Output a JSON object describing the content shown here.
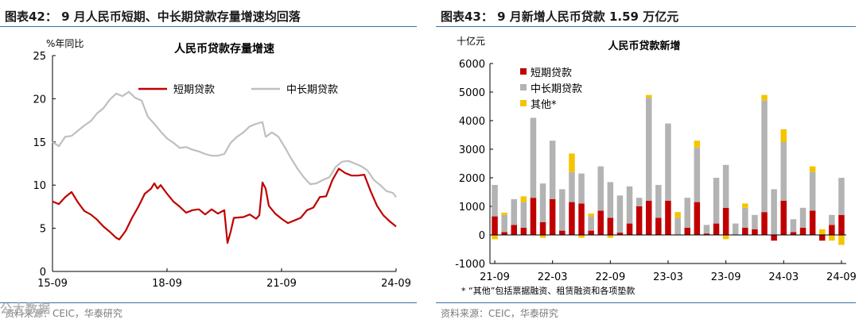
{
  "left_panel": {
    "figure_title": "图表42： 9 月人民币短期、中长期贷款存量增速均回落",
    "source": "资料来源：CEIC，华泰研究",
    "chart_data": {
      "type": "line",
      "title": "人民币贷款存量增速",
      "ylabel": "%年同比",
      "ylim": [
        0,
        25
      ],
      "yticks": [
        0,
        5,
        10,
        15,
        20,
        25
      ],
      "xlim": [
        "2015-09",
        "2024-09"
      ],
      "xticks": [
        "15-09",
        "18-09",
        "21-09",
        "24-09"
      ],
      "grid": false,
      "legend_position": "top",
      "series": [
        {
          "name": "短期贷款",
          "color": "#c00000",
          "points": [
            [
              "2015-09",
              8.1
            ],
            [
              "2015-11",
              7.8
            ],
            [
              "2016-01",
              8.6
            ],
            [
              "2016-03",
              9.2
            ],
            [
              "2016-05",
              8.0
            ],
            [
              "2016-07",
              7.0
            ],
            [
              "2016-09",
              6.6
            ],
            [
              "2016-11",
              6.0
            ],
            [
              "2017-01",
              5.2
            ],
            [
              "2017-03",
              4.6
            ],
            [
              "2017-05",
              3.9
            ],
            [
              "2017-06",
              3.7
            ],
            [
              "2017-08",
              4.7
            ],
            [
              "2017-10",
              6.2
            ],
            [
              "2017-12",
              7.5
            ],
            [
              "2018-02",
              9.0
            ],
            [
              "2018-04",
              9.6
            ],
            [
              "2018-05",
              10.2
            ],
            [
              "2018-06",
              9.6
            ],
            [
              "2018-07",
              10.0
            ],
            [
              "2018-09",
              9.0
            ],
            [
              "2018-11",
              8.1
            ],
            [
              "2019-01",
              7.5
            ],
            [
              "2019-03",
              6.8
            ],
            [
              "2019-05",
              7.1
            ],
            [
              "2019-07",
              7.2
            ],
            [
              "2019-09",
              6.6
            ],
            [
              "2019-11",
              7.2
            ],
            [
              "2020-01",
              6.7
            ],
            [
              "2020-03",
              7.1
            ],
            [
              "2020-04",
              3.3
            ],
            [
              "2020-05",
              4.6
            ],
            [
              "2020-06",
              6.2
            ],
            [
              "2020-09",
              6.3
            ],
            [
              "2020-11",
              6.6
            ],
            [
              "2021-01",
              6.1
            ],
            [
              "2021-02",
              6.5
            ],
            [
              "2021-03",
              10.3
            ],
            [
              "2021-04",
              9.6
            ],
            [
              "2021-05",
              7.6
            ],
            [
              "2021-07",
              6.7
            ],
            [
              "2021-09",
              6.1
            ],
            [
              "2021-11",
              5.6
            ],
            [
              "2022-01",
              5.9
            ],
            [
              "2022-03",
              6.2
            ],
            [
              "2022-05",
              7.1
            ],
            [
              "2022-07",
              7.4
            ],
            [
              "2022-09",
              8.6
            ],
            [
              "2022-11",
              8.7
            ],
            [
              "2023-01",
              10.6
            ],
            [
              "2023-03",
              11.9
            ],
            [
              "2023-05",
              11.4
            ],
            [
              "2023-07",
              11.1
            ],
            [
              "2023-09",
              11.1
            ],
            [
              "2023-11",
              11.2
            ],
            [
              "2024-01",
              9.3
            ],
            [
              "2024-03",
              7.6
            ],
            [
              "2024-05",
              6.5
            ],
            [
              "2024-07",
              5.8
            ],
            [
              "2024-09",
              5.2
            ]
          ]
        },
        {
          "name": "中长期贷款",
          "color": "#bfbfbf",
          "points": [
            [
              "2015-09",
              15.0
            ],
            [
              "2015-11",
              14.5
            ],
            [
              "2016-01",
              15.6
            ],
            [
              "2016-03",
              15.7
            ],
            [
              "2016-05",
              16.3
            ],
            [
              "2016-07",
              16.9
            ],
            [
              "2016-09",
              17.4
            ],
            [
              "2016-11",
              18.3
            ],
            [
              "2017-01",
              18.9
            ],
            [
              "2017-03",
              19.9
            ],
            [
              "2017-05",
              20.6
            ],
            [
              "2017-07",
              20.3
            ],
            [
              "2017-09",
              20.8
            ],
            [
              "2017-11",
              20.1
            ],
            [
              "2018-01",
              19.8
            ],
            [
              "2018-03",
              17.9
            ],
            [
              "2018-05",
              17.1
            ],
            [
              "2018-07",
              16.2
            ],
            [
              "2018-09",
              15.4
            ],
            [
              "2018-11",
              14.9
            ],
            [
              "2019-01",
              14.3
            ],
            [
              "2019-03",
              14.4
            ],
            [
              "2019-05",
              14.1
            ],
            [
              "2019-07",
              13.9
            ],
            [
              "2019-09",
              13.6
            ],
            [
              "2019-11",
              13.4
            ],
            [
              "2020-01",
              13.4
            ],
            [
              "2020-03",
              13.6
            ],
            [
              "2020-05",
              14.9
            ],
            [
              "2020-07",
              15.6
            ],
            [
              "2020-09",
              16.1
            ],
            [
              "2020-11",
              16.8
            ],
            [
              "2021-01",
              17.1
            ],
            [
              "2021-03",
              17.3
            ],
            [
              "2021-04",
              15.6
            ],
            [
              "2021-06",
              16.1
            ],
            [
              "2021-08",
              15.6
            ],
            [
              "2021-10",
              14.4
            ],
            [
              "2021-12",
              13.1
            ],
            [
              "2022-02",
              11.9
            ],
            [
              "2022-04",
              10.9
            ],
            [
              "2022-06",
              10.1
            ],
            [
              "2022-08",
              10.2
            ],
            [
              "2022-10",
              10.6
            ],
            [
              "2022-12",
              10.9
            ],
            [
              "2023-02",
              12.1
            ],
            [
              "2023-04",
              12.7
            ],
            [
              "2023-06",
              12.8
            ],
            [
              "2023-08",
              12.5
            ],
            [
              "2023-10",
              12.2
            ],
            [
              "2023-12",
              11.7
            ],
            [
              "2024-02",
              10.6
            ],
            [
              "2024-04",
              10.0
            ],
            [
              "2024-06",
              9.3
            ],
            [
              "2024-08",
              9.1
            ],
            [
              "2024-09",
              8.6
            ]
          ]
        }
      ]
    }
  },
  "right_panel": {
    "figure_title": "图表43： 9 月新增人民币贷款 1.59 万亿元",
    "source": "资料来源：CEIC，华泰研究",
    "chart_data": {
      "type": "bar",
      "stacked": true,
      "title": "人民币贷款新增",
      "ylabel": "十亿元",
      "ylim": [
        -1000,
        6000
      ],
      "yticks": [
        -1000,
        0,
        1000,
        2000,
        3000,
        4000,
        5000,
        6000
      ],
      "xticks": [
        "21-09",
        "22-03",
        "22-09",
        "23-03",
        "23-09",
        "24-03",
        "24-09"
      ],
      "xtick_indices": [
        0,
        6,
        12,
        18,
        24,
        30,
        36
      ],
      "grid": false,
      "legend_position": "top-left",
      "note": "* “其他”包括票据融资、租赁融资和各项垫款",
      "categories": [
        "2021-09",
        "2021-10",
        "2021-11",
        "2021-12",
        "2022-01",
        "2022-02",
        "2022-03",
        "2022-04",
        "2022-05",
        "2022-06",
        "2022-07",
        "2022-08",
        "2022-09",
        "2022-10",
        "2022-11",
        "2022-12",
        "2023-01",
        "2023-02",
        "2023-03",
        "2023-04",
        "2023-05",
        "2023-06",
        "2023-07",
        "2023-08",
        "2023-09",
        "2023-10",
        "2023-11",
        "2023-12",
        "2024-01",
        "2024-02",
        "2024-03",
        "2024-04",
        "2024-05",
        "2024-06",
        "2024-07",
        "2024-08",
        "2024-09"
      ],
      "series": [
        {
          "name": "短期贷款",
          "color": "#c00000",
          "values": [
            650,
            100,
            350,
            250,
            1300,
            450,
            1250,
            150,
            1150,
            1100,
            150,
            850,
            600,
            80,
            400,
            1000,
            1200,
            600,
            1200,
            0,
            250,
            1150,
            50,
            400,
            950,
            0,
            250,
            200,
            800,
            -200,
            1200,
            100,
            250,
            850,
            -200,
            350,
            700
          ]
        },
        {
          "name": "中长期贷款",
          "color": "#b3b3b3",
          "values": [
            1100,
            600,
            900,
            900,
            2800,
            1350,
            2050,
            1450,
            1050,
            1050,
            500,
            1550,
            1250,
            1300,
            1300,
            300,
            3600,
            1150,
            2700,
            600,
            1050,
            1900,
            300,
            1600,
            1500,
            400,
            700,
            500,
            3900,
            1600,
            2050,
            450,
            700,
            1350,
            0,
            350,
            1300
          ]
        },
        {
          "name": "其他*",
          "color": "#f5c400",
          "values": [
            -150,
            80,
            0,
            200,
            0,
            -100,
            0,
            0,
            650,
            -100,
            100,
            0,
            -100,
            0,
            0,
            0,
            100,
            0,
            0,
            200,
            0,
            250,
            0,
            0,
            -150,
            0,
            150,
            0,
            200,
            0,
            450,
            0,
            0,
            200,
            200,
            -200,
            -350
          ]
        }
      ]
    }
  },
  "watermark": "公大数据"
}
